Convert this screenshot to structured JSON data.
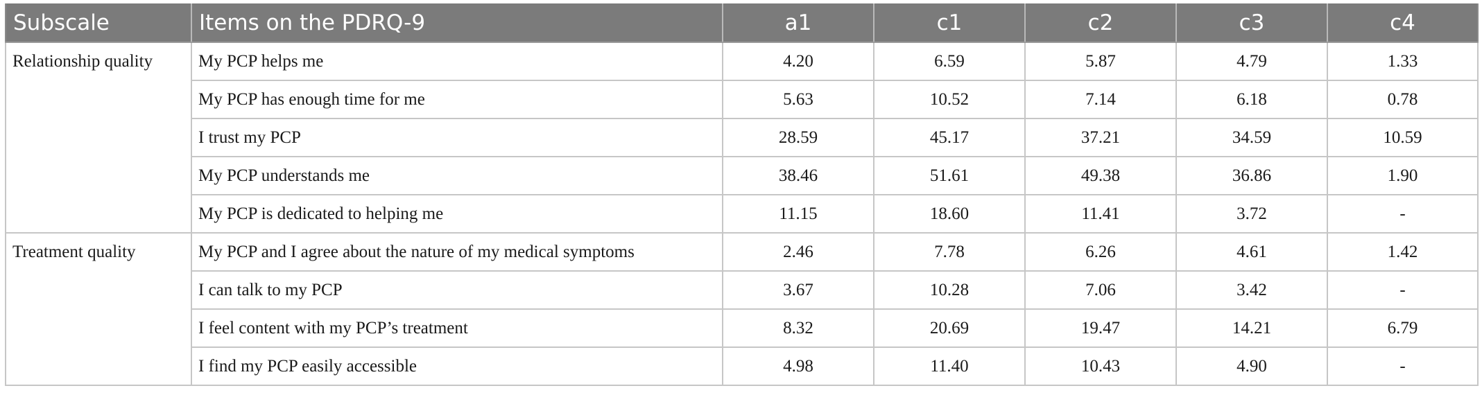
{
  "table": {
    "headers": [
      "Subscale",
      "Items on the PDRQ-9",
      "a1",
      "c1",
      "c2",
      "c3",
      "c4"
    ],
    "groups": [
      {
        "subscale": "Relationship quality",
        "rows": [
          {
            "item": "My PCP helps me",
            "values": [
              "4.20",
              "6.59",
              "5.87",
              "4.79",
              "1.33"
            ]
          },
          {
            "item": "My PCP has enough time for me",
            "values": [
              "5.63",
              "10.52",
              "7.14",
              "6.18",
              "0.78"
            ]
          },
          {
            "item": "I trust my PCP",
            "values": [
              "28.59",
              "45.17",
              "37.21",
              "34.59",
              "10.59"
            ]
          },
          {
            "item": "My PCP understands me",
            "values": [
              "38.46",
              "51.61",
              "49.38",
              "36.86",
              "1.90"
            ]
          },
          {
            "item": "My PCP is dedicated to helping me",
            "values": [
              "11.15",
              "18.60",
              "11.41",
              "3.72",
              "-"
            ]
          }
        ]
      },
      {
        "subscale": "Treatment quality",
        "rows": [
          {
            "item": "My PCP and I agree about the nature of my medical symptoms",
            "values": [
              "2.46",
              "7.78",
              "6.26",
              "4.61",
              "1.42"
            ]
          },
          {
            "item": "I can talk to my PCP",
            "values": [
              "3.67",
              "10.28",
              "7.06",
              "3.42",
              "-"
            ]
          },
          {
            "item": "I feel content with my PCP’s treatment",
            "values": [
              "8.32",
              "20.69",
              "19.47",
              "14.21",
              "6.79"
            ]
          },
          {
            "item": "I find my PCP easily accessible",
            "values": [
              "4.98",
              "11.40",
              "10.43",
              "4.90",
              "-"
            ]
          }
        ]
      }
    ]
  }
}
